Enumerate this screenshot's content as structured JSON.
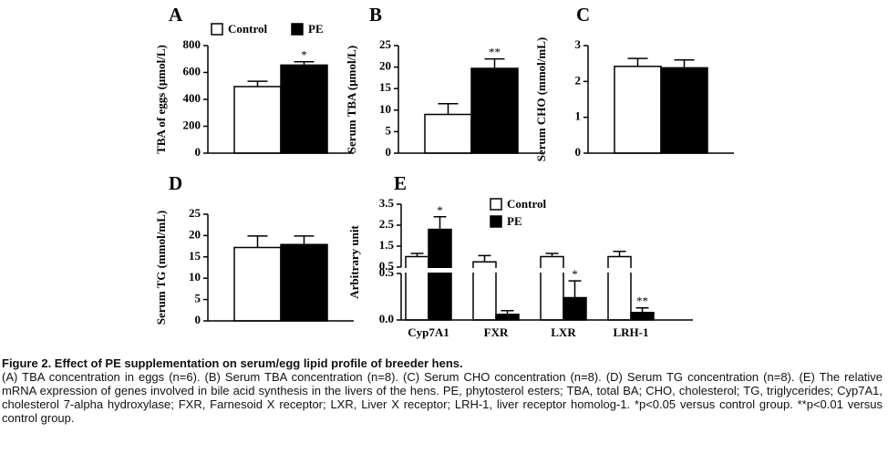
{
  "chart_data": [
    {
      "type": "bar",
      "label": "A",
      "ylabel": "TBA of eggs (μmol/L)",
      "ylim": [
        0,
        800
      ],
      "yticks": [
        0,
        200,
        400,
        600,
        800
      ],
      "legend": "top",
      "series": [
        {
          "name": "Control",
          "color": "#ffffff",
          "values": [
            495
          ],
          "errors": [
            40
          ]
        },
        {
          "name": "PE",
          "color": "#000000",
          "values": [
            655
          ],
          "errors": [
            25
          ]
        }
      ],
      "annotations": [
        {
          "text": "*",
          "series": 1,
          "index": 0
        }
      ]
    },
    {
      "type": "bar",
      "label": "B",
      "ylabel": "Serum TBA (μmol/L)",
      "ylim": [
        0,
        25
      ],
      "yticks": [
        0,
        5,
        10,
        15,
        20,
        25
      ],
      "series": [
        {
          "color": "#ffffff",
          "values": [
            9
          ],
          "errors": [
            2.5
          ]
        },
        {
          "color": "#000000",
          "values": [
            19.7
          ],
          "errors": [
            2.2
          ]
        }
      ],
      "annotations": [
        {
          "text": "**",
          "series": 1,
          "index": 0
        }
      ]
    },
    {
      "type": "bar",
      "label": "C",
      "ylabel": "Serum CHO (mmol/mL)",
      "ylim": [
        0,
        3
      ],
      "yticks": [
        0,
        1,
        2,
        3
      ],
      "series": [
        {
          "color": "#ffffff",
          "values": [
            2.42
          ],
          "errors": [
            0.22
          ]
        },
        {
          "color": "#000000",
          "values": [
            2.38
          ],
          "errors": [
            0.22
          ]
        }
      ]
    },
    {
      "type": "bar",
      "label": "D",
      "ylabel": "Serum TG (mmol/mL)",
      "ylim": [
        0,
        25
      ],
      "yticks": [
        0,
        5,
        10,
        15,
        20,
        25
      ],
      "series": [
        {
          "color": "#ffffff",
          "values": [
            17.2
          ],
          "errors": [
            2.7
          ]
        },
        {
          "color": "#000000",
          "values": [
            17.9
          ],
          "errors": [
            2
          ]
        }
      ]
    },
    {
      "type": "bar",
      "label": "E",
      "ylabel": "Arbitrary unit",
      "legend": "upper center",
      "categories": [
        "Cyp7A1",
        "FXR",
        "LXR",
        "LRH-1"
      ],
      "segments": [
        {
          "ylim": [
            0,
            0.5
          ],
          "yticks": [
            {
              "value": 0,
              "label": "0.0"
            },
            0.5
          ]
        },
        {
          "ylim": [
            0.5,
            3.5
          ],
          "yticks": [
            0.5,
            1.5,
            2.5,
            3.5
          ]
        }
      ],
      "series": [
        {
          "name": "Control",
          "color": "#ffffff",
          "values": [
            1.0,
            0.75,
            1.0,
            1.0
          ],
          "errors": [
            0.15,
            0.3,
            0.15,
            0.25
          ]
        },
        {
          "name": "PE",
          "color": "#000000",
          "values": [
            2.3,
            0.06,
            0.24,
            0.08
          ],
          "errors": [
            0.6,
            0.04,
            0.18,
            0.05
          ]
        }
      ],
      "annotations": [
        {
          "text": "*",
          "series": 1,
          "index": 0
        },
        {
          "text": "*",
          "series": 1,
          "index": 2
        },
        {
          "text": "**",
          "series": 1,
          "index": 3
        }
      ]
    }
  ],
  "caption": {
    "title": "Figure 2. Effect of PE supplementation on serum/egg lipid profile of breeder hens.",
    "body": "(A) TBA concentration in eggs (n=6). (B) Serum TBA concentration (n=8). (C) Serum CHO concentration (n=8). (D) Serum TG concentration (n=8). (E) The relative mRNA expression of genes involved in bile acid synthesis in the livers of the hens. PE, phytosterol esters; TBA, total BA; CHO, cholesterol; TG, triglycerides; Cyp7A1, cholesterol 7-alpha hydroxylase; FXR, Farnesoid X receptor; LXR, Liver X receptor; LRH-1, liver receptor homolog-1. *p<0.05 versus control group. **p<0.01 versus control group."
  }
}
